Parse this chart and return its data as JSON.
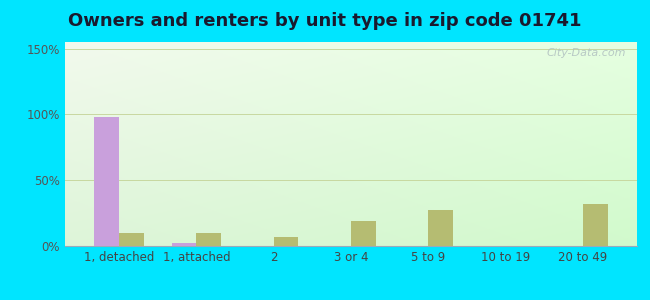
{
  "title": "Owners and renters by unit type in zip code 01741",
  "categories": [
    "1, detached",
    "1, attached",
    "2",
    "3 or 4",
    "5 to 9",
    "10 to 19",
    "20 to 49"
  ],
  "owner_values": [
    98,
    2,
    0,
    0,
    0,
    0,
    0
  ],
  "renter_values": [
    10,
    10,
    7,
    19,
    27,
    0,
    32
  ],
  "owner_color": "#c9a0dc",
  "renter_color": "#b5bc72",
  "outer_bg": "#00e5ff",
  "title_fontsize": 13,
  "tick_fontsize": 8.5,
  "legend_fontsize": 9,
  "ylim": [
    0,
    155
  ],
  "yticks": [
    0,
    50,
    100,
    150
  ],
  "ytick_labels": [
    "0%",
    "50%",
    "100%",
    "150%"
  ],
  "bar_width": 0.32,
  "watermark": "City-Data.com"
}
